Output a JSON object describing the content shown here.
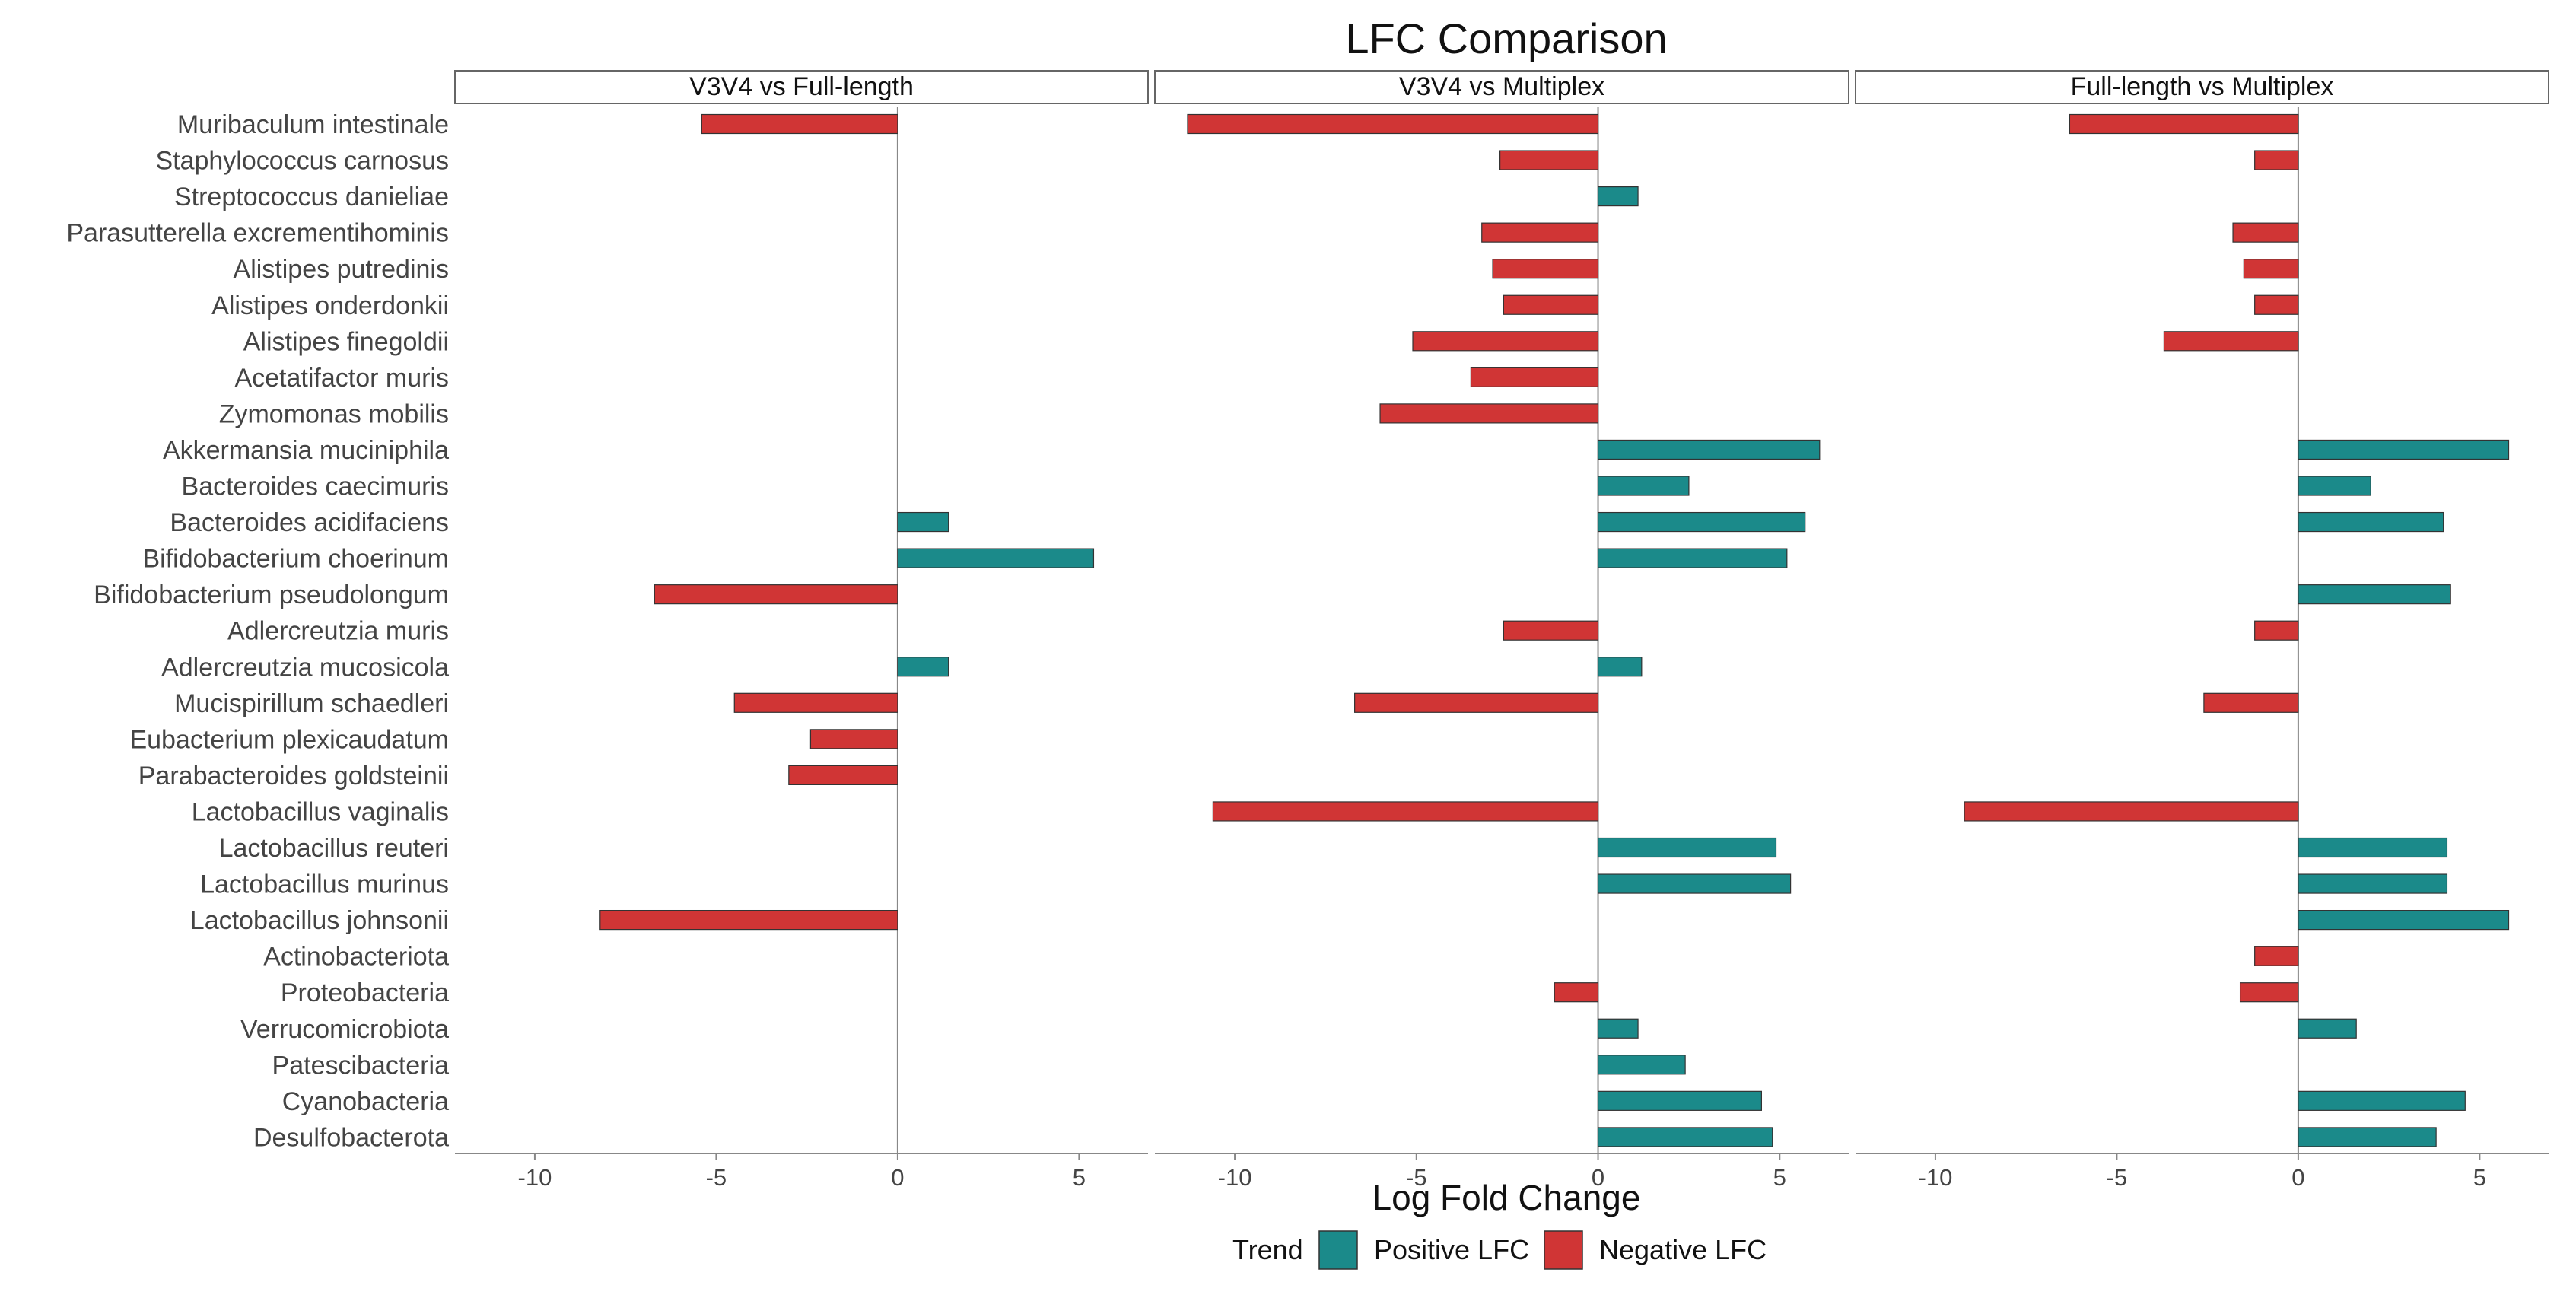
{
  "colors": {
    "positive": "#1b8a8a",
    "negative": "#d03535",
    "bar_stroke": "#333333",
    "axis": "#888888",
    "strip_border": "#666666"
  },
  "chart_data": {
    "type": "bar",
    "orientation": "horizontal",
    "title": "LFC Comparison",
    "xlabel": "Log Fold Change",
    "ylabel": "",
    "xlim": [
      -12.2,
      6.9
    ],
    "xticks": [
      -10,
      -5,
      0,
      5
    ],
    "xtick_labels": [
      "-10",
      "-5",
      "0",
      "5"
    ],
    "categories": [
      "Muribaculum intestinale",
      "Staphylococcus carnosus",
      "Streptococcus danieliae",
      "Parasutterella excrementihominis",
      "Alistipes putredinis",
      "Alistipes onderdonkii",
      "Alistipes finegoldii",
      "Acetatifactor muris",
      "Zymomonas mobilis",
      "Akkermansia muciniphila",
      "Bacteroides caecimuris",
      "Bacteroides acidifaciens",
      "Bifidobacterium choerinum",
      "Bifidobacterium pseudolongum",
      "Adlercreutzia muris",
      "Adlercreutzia mucosicola",
      "Mucispirillum schaedleri",
      "Eubacterium plexicaudatum",
      "Parabacteroides goldsteinii",
      "Lactobacillus vaginalis",
      "Lactobacillus reuteri",
      "Lactobacillus murinus",
      "Lactobacillus johnsonii",
      "Actinobacteriota",
      "Proteobacteria",
      "Verrucomicrobiota",
      "Patescibacteria",
      "Cyanobacteria",
      "Desulfobacterota"
    ],
    "series": [
      {
        "name": "V3V4 vs Full-length",
        "values": [
          -5.4,
          null,
          null,
          null,
          null,
          null,
          null,
          null,
          null,
          null,
          null,
          1.4,
          5.4,
          -6.7,
          null,
          1.4,
          -4.5,
          -2.4,
          -3.0,
          null,
          null,
          null,
          -8.2,
          null,
          null,
          null,
          null,
          null,
          null
        ]
      },
      {
        "name": "V3V4 vs Multiplex",
        "values": [
          -11.3,
          -2.7,
          1.1,
          -3.2,
          -2.9,
          -2.6,
          -5.1,
          -3.5,
          -6.0,
          6.1,
          2.5,
          5.7,
          5.2,
          null,
          -2.6,
          1.2,
          -6.7,
          null,
          null,
          -10.6,
          4.9,
          5.3,
          null,
          null,
          -1.2,
          1.1,
          2.4,
          4.5,
          4.8
        ]
      },
      {
        "name": "Full-length vs Multiplex",
        "values": [
          -6.3,
          -1.2,
          null,
          -1.8,
          -1.5,
          -1.2,
          -3.7,
          null,
          null,
          5.8,
          2.0,
          4.0,
          null,
          4.2,
          -1.2,
          null,
          -2.6,
          null,
          null,
          -9.2,
          4.1,
          4.1,
          5.8,
          -1.2,
          -1.6,
          1.6,
          null,
          4.6,
          3.8
        ]
      }
    ],
    "legend": {
      "title": "Trend",
      "entries": [
        "Positive LFC",
        "Negative LFC"
      ],
      "position": "bottom"
    }
  }
}
